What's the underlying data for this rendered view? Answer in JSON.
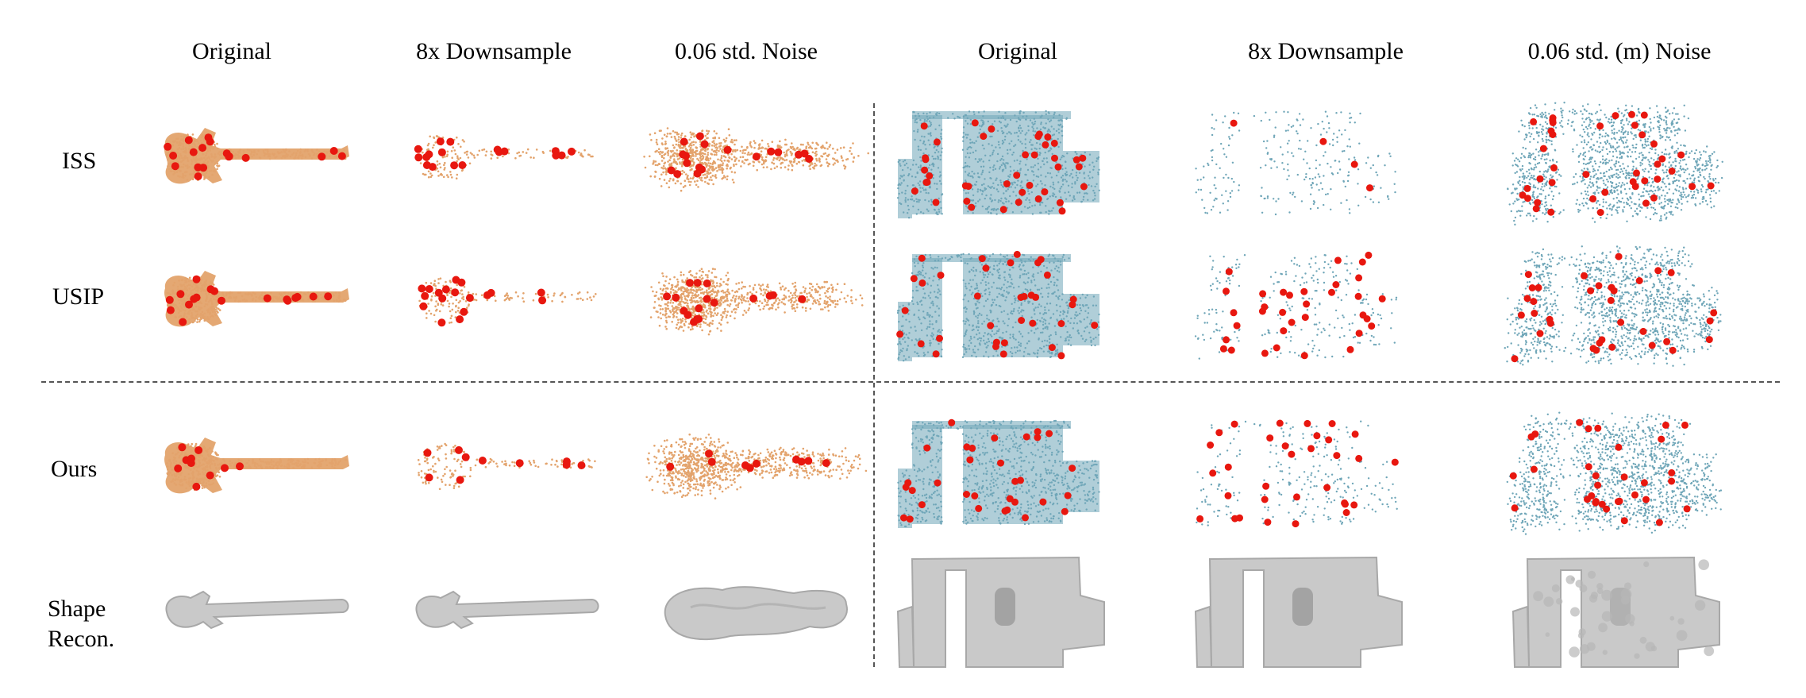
{
  "figure": {
    "columns": [
      "Original",
      "8x Downsample",
      "0.06 std. Noise",
      "Original",
      "8x Downsample",
      "0.06 std. (m) Noise"
    ],
    "rows": [
      "ISS",
      "USIP",
      "Ours",
      "Shape Recon."
    ],
    "colors": {
      "guitar_points": "#e3a36c",
      "room_points": "#6fa6b8",
      "keypoints": "#e8170f",
      "mesh_fill": "#c9c9c9",
      "mesh_stroke": "#a8a8a8",
      "divider": "#555555"
    }
  }
}
